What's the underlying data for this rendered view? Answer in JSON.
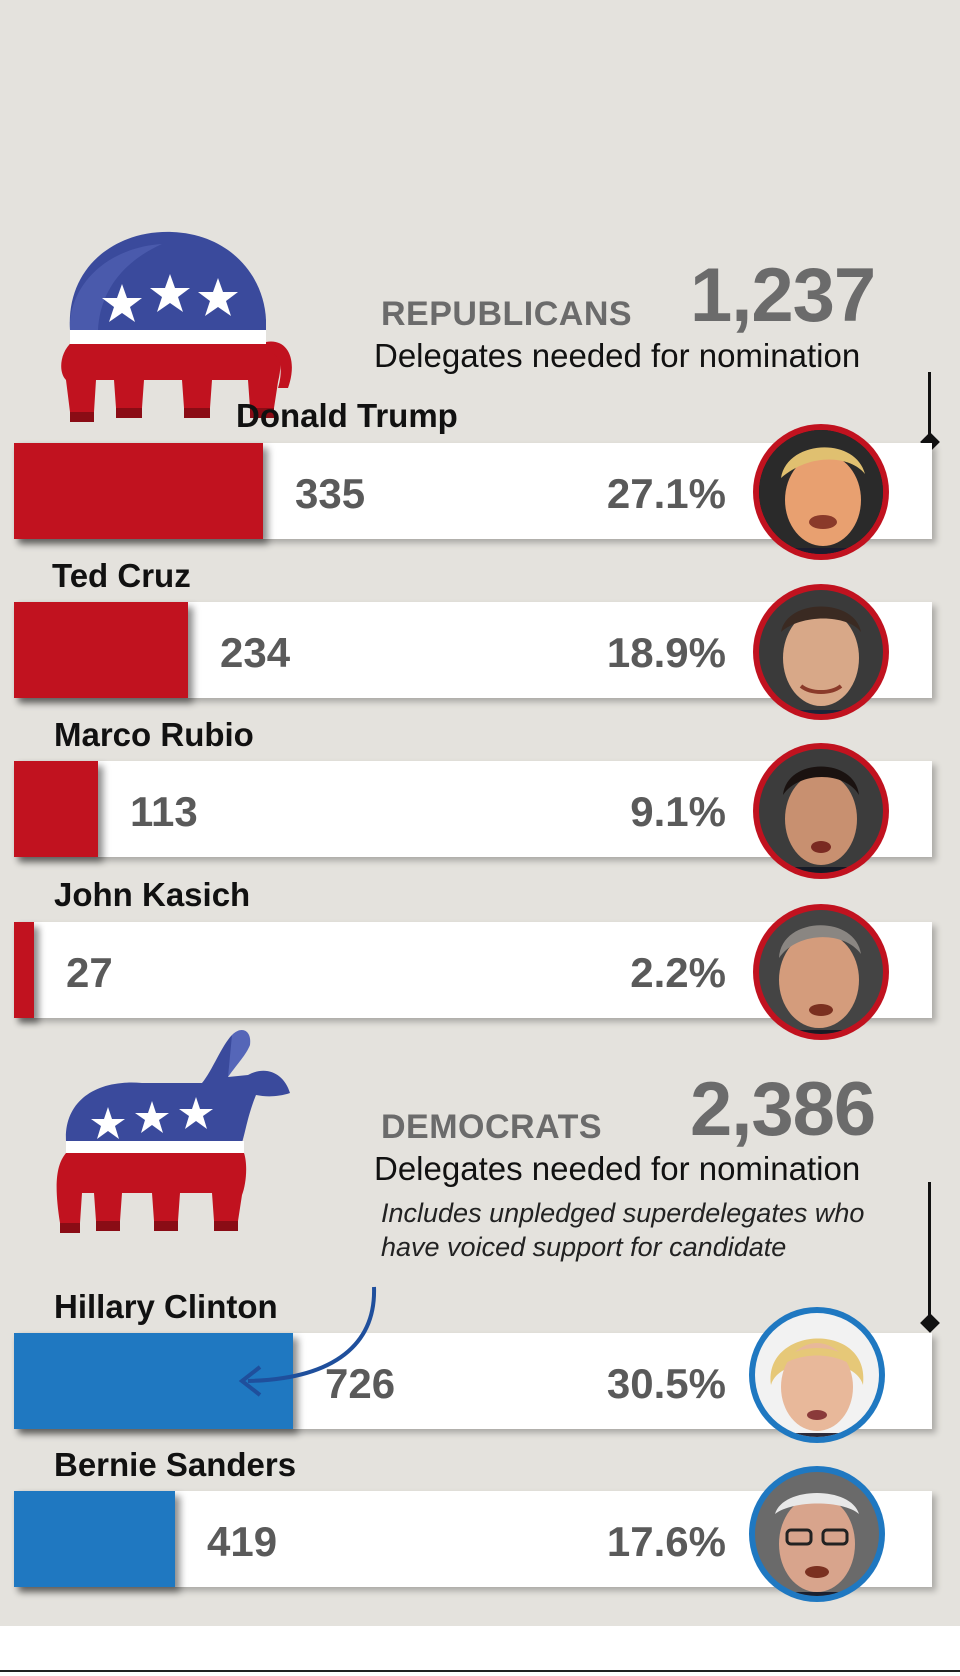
{
  "colors": {
    "republican": "#c1121f",
    "democrat": "#1f78c1",
    "background": "#e4e2dd",
    "text_gray": "#6b6b6b"
  },
  "republicans": {
    "label": "REPUBLICANS",
    "needed_number": "1,237",
    "needed_text": "Delegates needed for nomination",
    "logo_icon": "republican-elephant-icon"
  },
  "democrats": {
    "label": "DEMOCRATS",
    "needed_number": "2,386",
    "needed_text": "Delegates needed for nomination",
    "note": "Includes unpledged superdelegates who have voiced support for candidate",
    "logo_icon": "democratic-donkey-icon"
  },
  "chart_data": {
    "type": "bar",
    "orientation": "horizontal",
    "groups": [
      {
        "party": "REPUBLICANS",
        "needed": 1237,
        "candidates": [
          {
            "name": "Donald Trump",
            "delegates": 335,
            "delegates_label": "335",
            "percent": 27.1,
            "percent_label": "27.1%"
          },
          {
            "name": "Ted Cruz",
            "delegates": 234,
            "delegates_label": "234",
            "percent": 18.9,
            "percent_label": "18.9%"
          },
          {
            "name": "Marco Rubio",
            "delegates": 113,
            "delegates_label": "113",
            "percent": 9.1,
            "percent_label": "9.1%"
          },
          {
            "name": "John Kasich",
            "delegates": 27,
            "delegates_label": "27",
            "percent": 2.2,
            "percent_label": "2.2%"
          }
        ]
      },
      {
        "party": "DEMOCRATS",
        "needed": 2386,
        "candidates": [
          {
            "name": "Hillary Clinton",
            "delegates": 726,
            "delegates_label": "726",
            "percent": 30.5,
            "percent_label": "30.5%"
          },
          {
            "name": "Bernie Sanders",
            "delegates": 419,
            "delegates_label": "419",
            "percent": 17.6,
            "percent_label": "17.6%"
          }
        ]
      }
    ]
  }
}
